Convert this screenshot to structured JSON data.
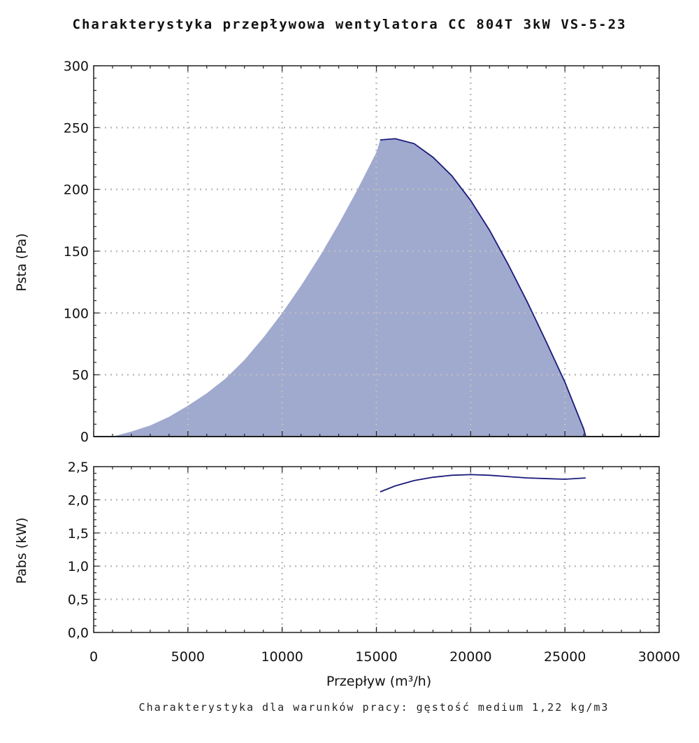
{
  "title": "Charakterystyka przepływowa wentylatora CC 804T 3kW VS-5-23",
  "footnote": "Charakterystyka dla warunków pracy: gęstość medium 1,22 kg/m3",
  "colors": {
    "area_fill": "#a0aacf",
    "curve": "#1a1a7a",
    "grid": "#bdbdbd",
    "frame": "#222222"
  },
  "chart_data": [
    {
      "type": "area",
      "ylabel": "Psta (Pa)",
      "xlim": [
        0,
        30000
      ],
      "ylim": [
        0,
        300
      ],
      "xticks": [
        0,
        5000,
        10000,
        15000,
        20000,
        25000,
        30000
      ],
      "yticks": [
        0,
        50,
        100,
        150,
        200,
        250,
        300
      ],
      "ytick_labels": [
        "0",
        "50",
        "100",
        "150",
        "200",
        "250",
        "300"
      ],
      "grid": true,
      "series": [
        {
          "x": [
            0,
            1000,
            2000,
            3000,
            4000,
            5000,
            6000,
            7000,
            8000,
            9000,
            10000,
            11000,
            12000,
            13000,
            14000,
            15000,
            15200,
            16000,
            17000,
            18000,
            19000,
            20000,
            21000,
            22000,
            23000,
            24000,
            25000,
            26000,
            26100
          ],
          "y": [
            0,
            0,
            4,
            9,
            16,
            25,
            35,
            47,
            62,
            80,
            100,
            122,
            146,
            172,
            200,
            230,
            240,
            241,
            237,
            226,
            211,
            191,
            167,
            139,
            109,
            77,
            44,
            6,
            0
          ]
        },
        {
          "x": [
            26100,
            27000,
            28000,
            29000,
            30000
          ],
          "y": [
            0,
            0,
            0,
            0,
            0
          ]
        }
      ]
    },
    {
      "type": "line",
      "ylabel": "Pabs (kW)",
      "xlabel": "Przepływ (m³/h)",
      "xlim": [
        0,
        30000
      ],
      "ylim": [
        0,
        2.5
      ],
      "xticks": [
        0,
        5000,
        10000,
        15000,
        20000,
        25000,
        30000
      ],
      "xtick_labels": [
        "0",
        "5000",
        "10000",
        "15000",
        "20000",
        "25000",
        "30000"
      ],
      "yticks": [
        0,
        0.5,
        1.0,
        1.5,
        2.0,
        2.5
      ],
      "ytick_labels": [
        "0,0",
        "0,5",
        "1,0",
        "1,5",
        "2,0",
        "2,5"
      ],
      "grid": true,
      "series": [
        {
          "x": [
            15200,
            16000,
            17000,
            18000,
            19000,
            20000,
            21000,
            22000,
            23000,
            24000,
            25000,
            26100
          ],
          "y": [
            2.12,
            2.21,
            2.29,
            2.34,
            2.37,
            2.38,
            2.37,
            2.35,
            2.33,
            2.32,
            2.31,
            2.33
          ]
        }
      ]
    }
  ]
}
